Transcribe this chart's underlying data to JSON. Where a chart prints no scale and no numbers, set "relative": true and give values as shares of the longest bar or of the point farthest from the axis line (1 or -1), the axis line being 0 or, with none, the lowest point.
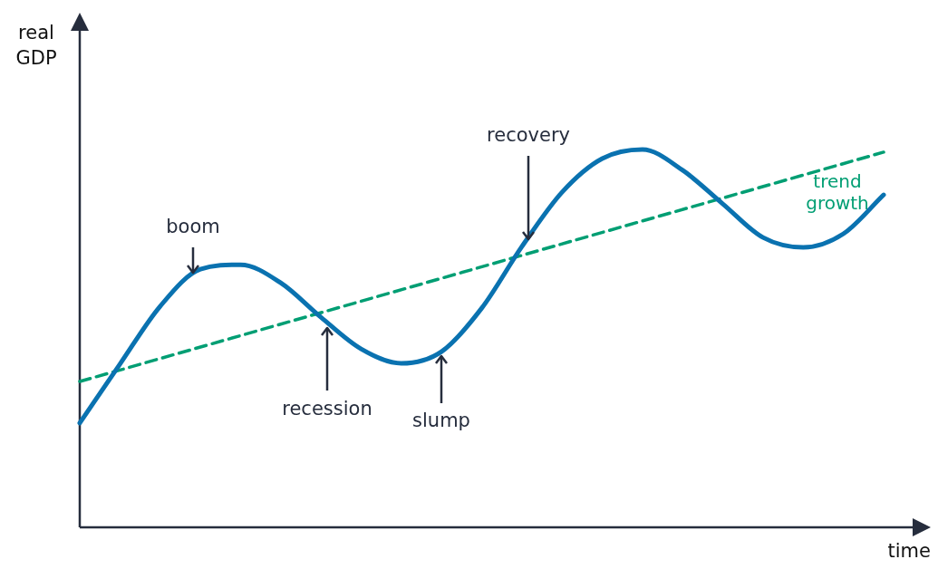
{
  "chart_data": {
    "type": "line",
    "xlabel": "time",
    "ylabel": "real GDP",
    "relative": true,
    "marker": "none",
    "legend": false,
    "categories": [
      null,
      null,
      null,
      null,
      null,
      null,
      null,
      null,
      null,
      null,
      null,
      null,
      null,
      null,
      null,
      null,
      null,
      null,
      null,
      null,
      null
    ],
    "series": [
      {
        "color": "#0a72b0",
        "line_style": "solid",
        "values": [
          0.276,
          0.432,
          0.585,
          0.683,
          0.695,
          0.647,
          0.556,
          0.472,
          0.434,
          0.465,
          0.58,
          0.743,
          0.887,
          0.976,
          1,
          0.945,
          0.856,
          0.767,
          0.741,
          0.777,
          0.88
        ]
      },
      {
        "name": "trend growth",
        "color": "#009e73",
        "line_style": "dashed",
        "values": [
          0.386,
          null,
          null,
          null,
          null,
          null,
          null,
          null,
          null,
          null,
          null,
          null,
          null,
          null,
          null,
          null,
          null,
          null,
          null,
          null,
          0.993
        ]
      }
    ],
    "annotations": [
      "boom",
      "recession",
      "slump",
      "recovery"
    ]
  }
}
